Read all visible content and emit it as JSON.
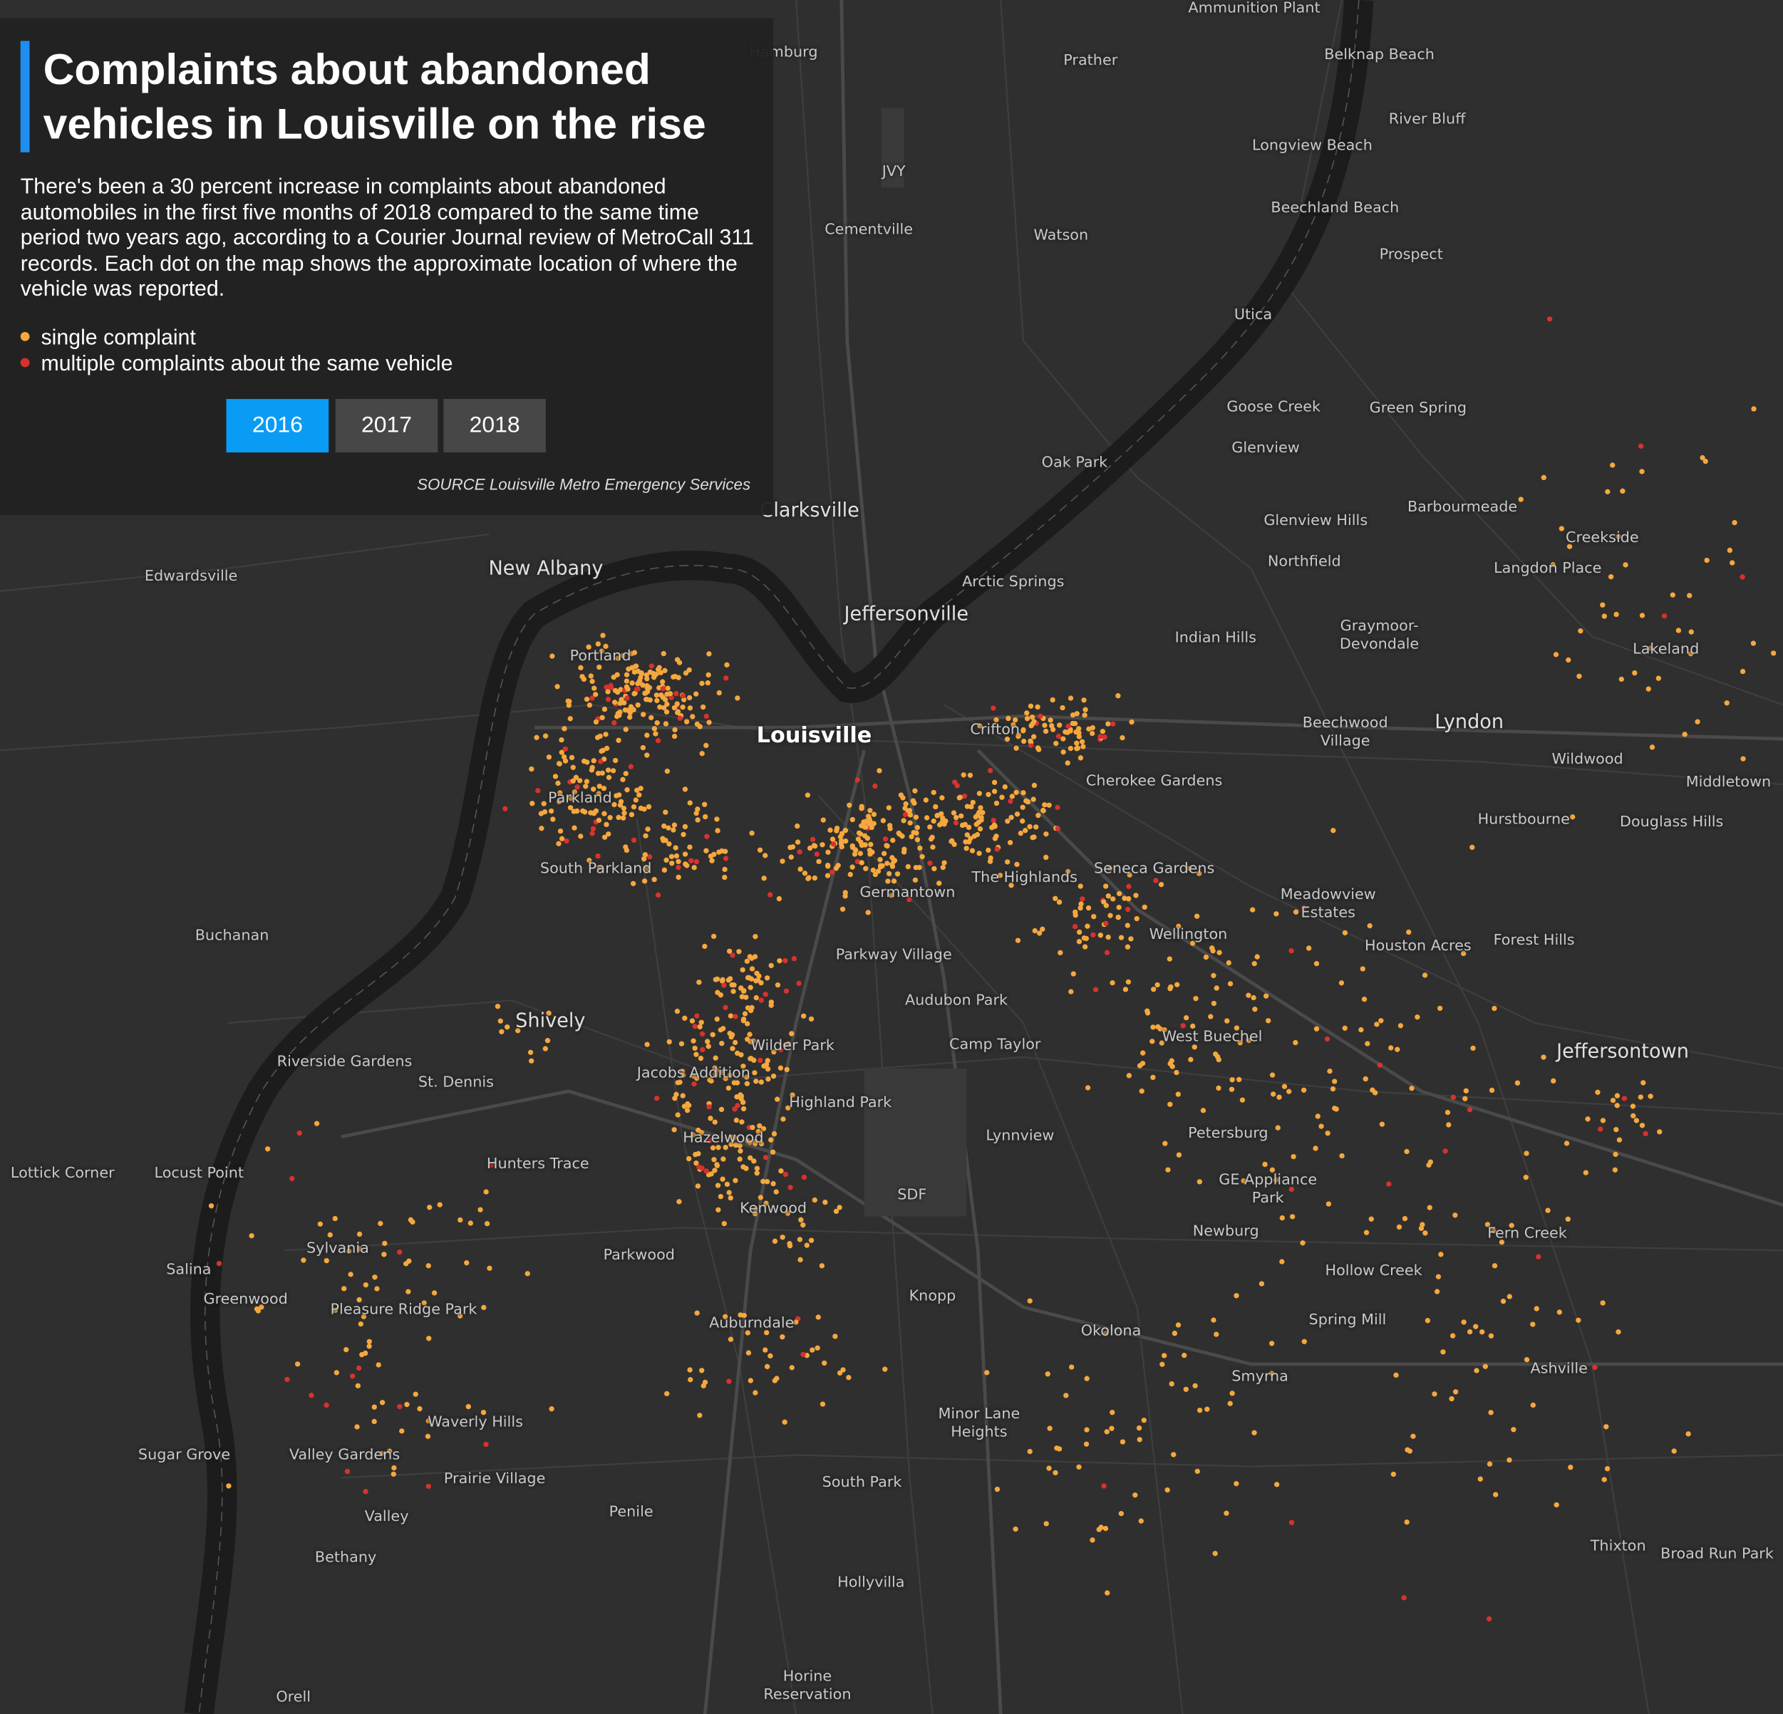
{
  "panel": {
    "title": "Complaints about abandoned vehicles in Louisville on the rise",
    "description": "There's been a 30 percent increase in complaints about abandoned automobiles in the first five months of 2018 compared to the same time period two years ago, according to a Courier Journal review of MetroCall 311 records. Each dot on the map shows the approximate location of where the vehicle was reported.",
    "legend": [
      "single complaint",
      "multiple complaints about the same vehicle"
    ],
    "buttons": [
      "2016",
      "2017",
      "2018"
    ],
    "source": "SOURCE Louisville Metro Emergency Services"
  },
  "map": {
    "places": [
      "Ammunition Plant",
      "Prather",
      "Belknap Beach",
      "River Bluff",
      "Longview Beach",
      "JVY",
      "Cementville",
      "Watson",
      "Beechland Beach",
      "Prospect",
      "Utica",
      "Goose Creek",
      "Green Spring",
      "Glenview",
      "Oak Park",
      "Clarksville",
      "Barbourmeade",
      "Glenview Hills",
      "Creekside",
      "Northfield",
      "Langdon Place",
      "Edwardsville",
      "New Albany",
      "Arctic Springs",
      "Jeffersonville",
      "Indian Hills",
      "Graymoor-Devondale",
      "Lakeland",
      "Louisville",
      "Lyndon",
      "Beechwood Village",
      "Wildwood",
      "Middletown",
      "Cherokee Gardens",
      "Crifton",
      "Portland",
      "Parkland",
      "Hurstbourne",
      "Douglass Hills",
      "South Parkland",
      "Seneca Gardens",
      "The Highlands",
      "Germantown",
      "Meadowview Estates",
      "Wellington",
      "Houston Acres",
      "Forest Hills",
      "Buchanan",
      "Parkway Village",
      "Audubon Park",
      "Shively",
      "West Buechel",
      "Camp Taylor",
      "Wilder Park",
      "Jeffersontown",
      "Riverside Gardens",
      "St. Dennis",
      "Jacobs Addition",
      "Highland Park",
      "Petersburg",
      "Lynnview",
      "Hazelwood",
      "Hunters Trace",
      "Lottick Corner",
      "Locust Point",
      "GE Appliance Park",
      "SDF",
      "Kenwood",
      "Newburg",
      "Fern Creek",
      "Sylvania",
      "Parkwood",
      "Salina",
      "Hollow Creek",
      "Knopp",
      "Greenwood",
      "Pleasure Ridge Park",
      "Spring Mill",
      "Auburndale",
      "Okolona",
      "Ashville",
      "Smyrna",
      "Minor Lane Heights",
      "Waverly Hills",
      "Sugar Grove",
      "Valley Gardens",
      "Prairie Village",
      "South Park",
      "Penile",
      "Valley",
      "Thixton",
      "Broad Run Park",
      "Bethany",
      "Hollyvilla",
      "Horine Reservation",
      "Orell",
      "Hamburg"
    ]
  }
}
